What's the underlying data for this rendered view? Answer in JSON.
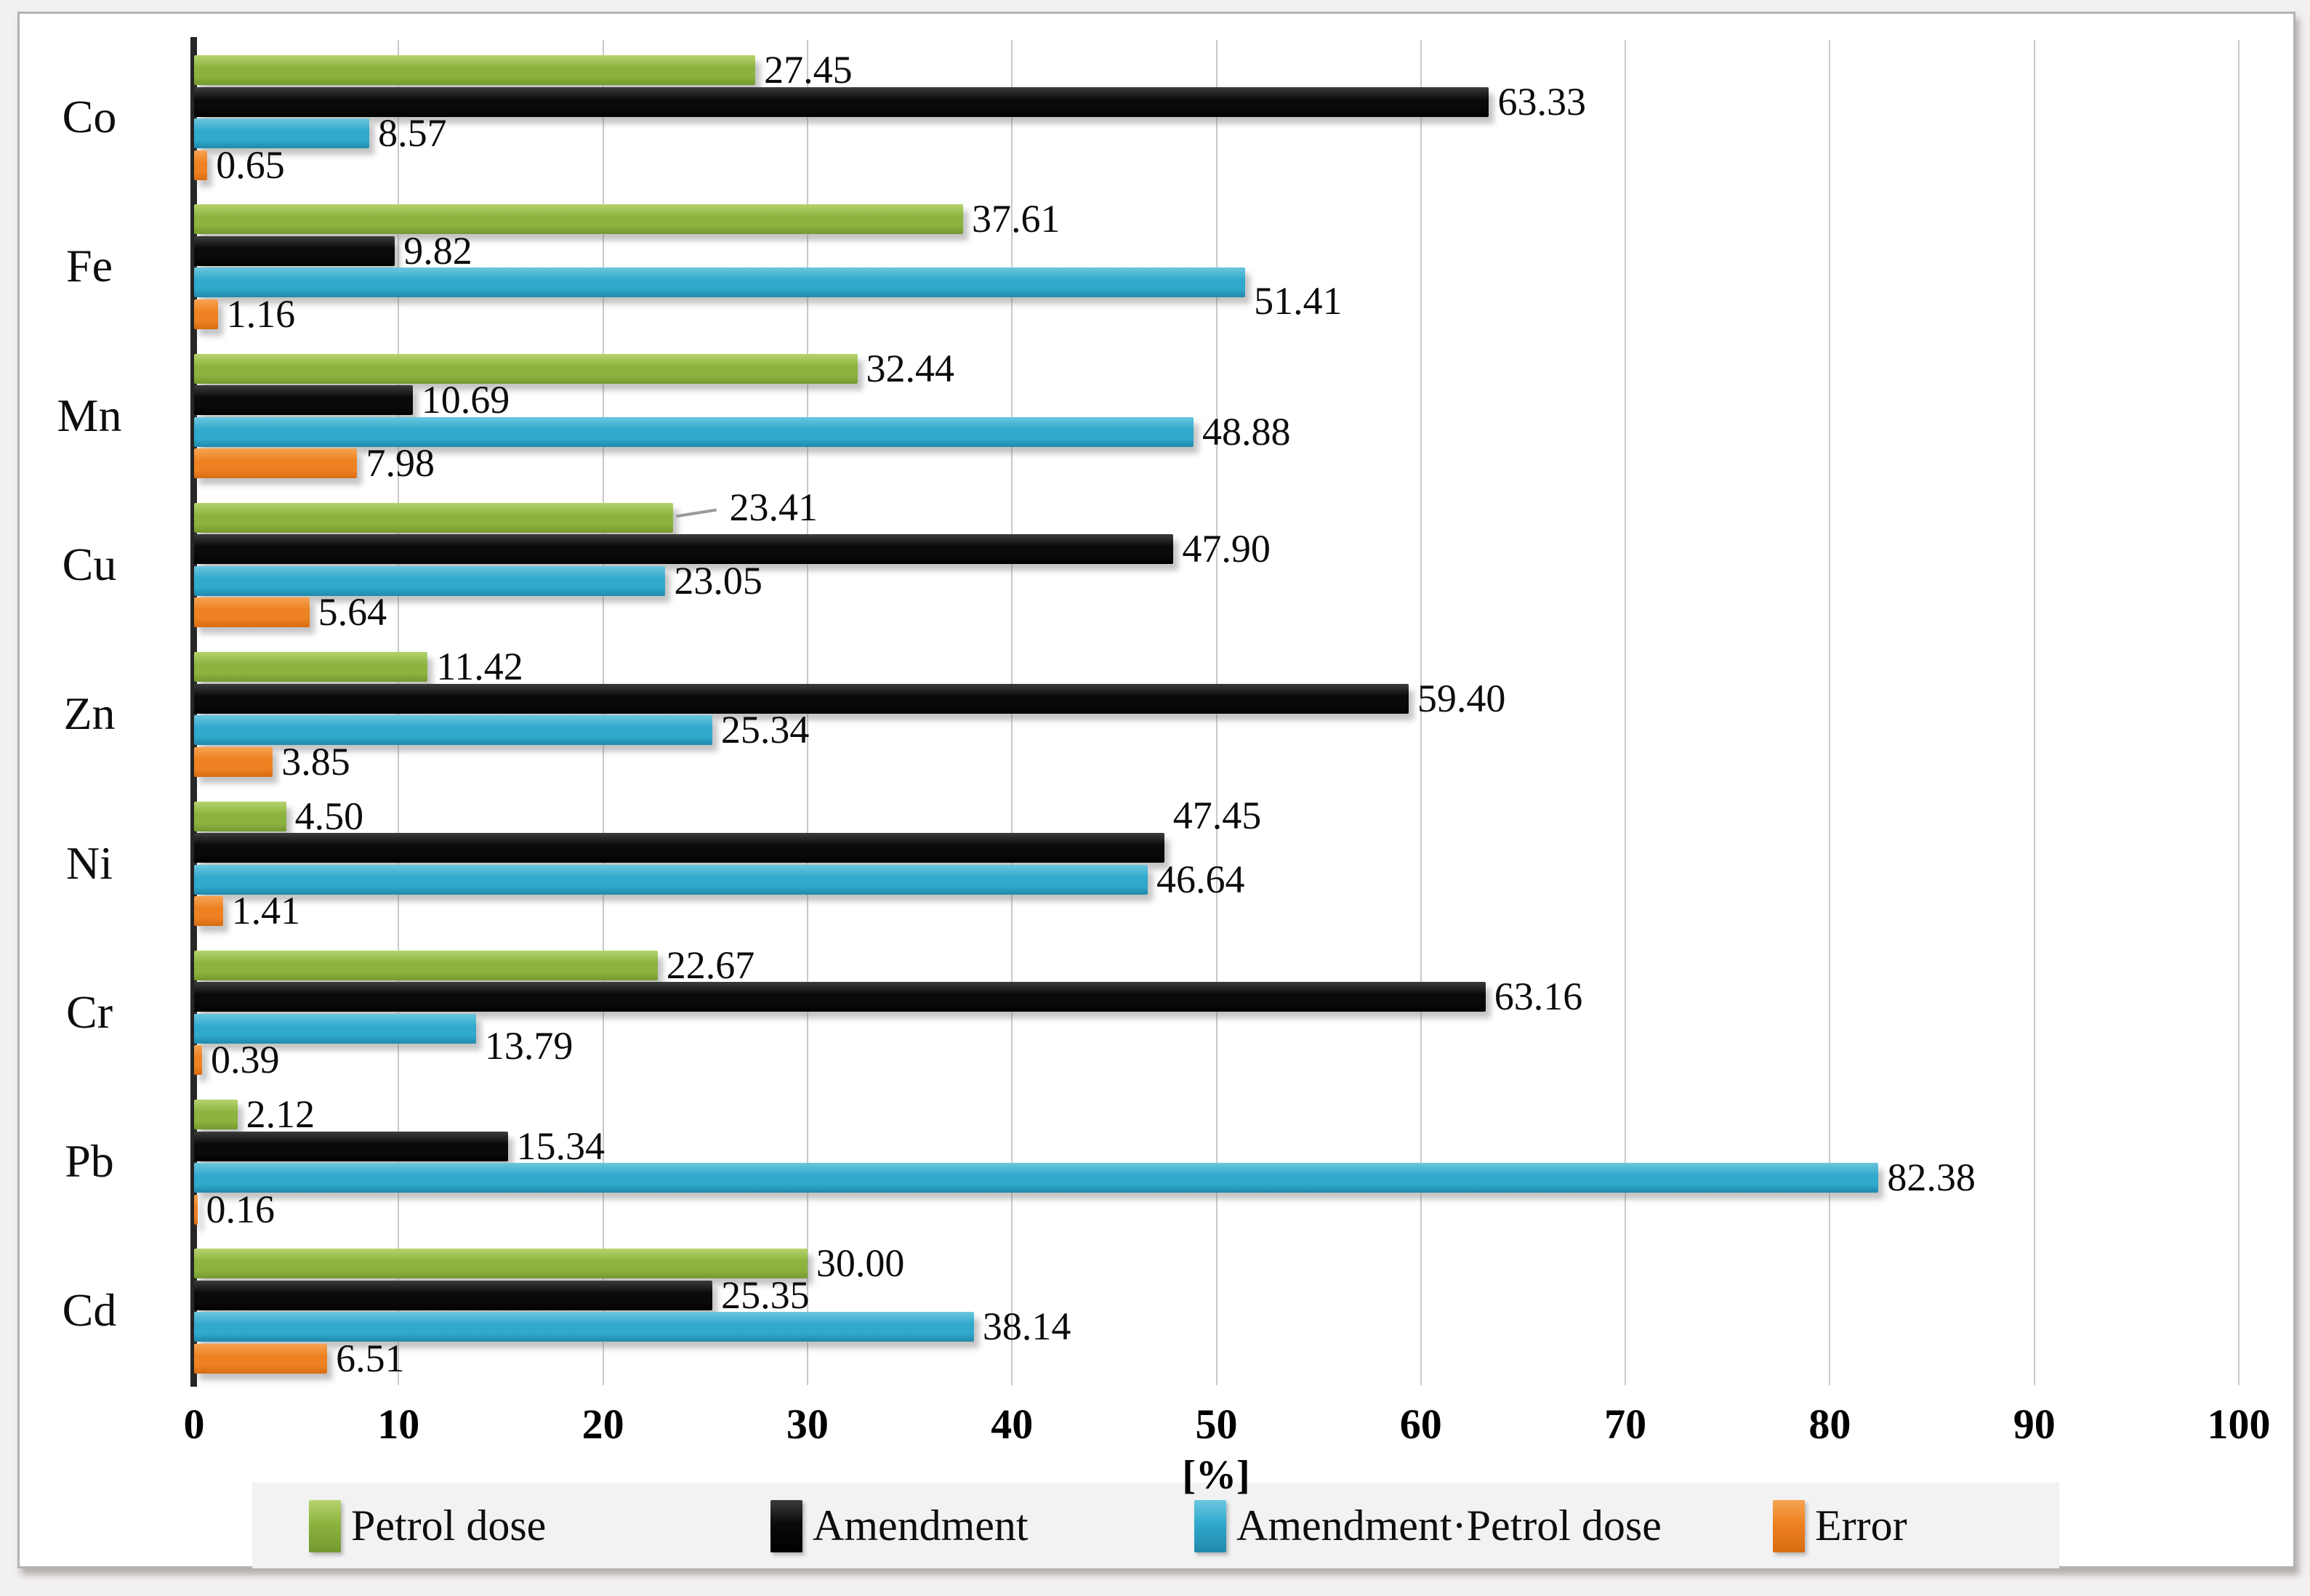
{
  "chart_data": {
    "type": "bar",
    "orientation": "horizontal",
    "title": "",
    "xlabel": "[%]",
    "ylabel": "",
    "xlim": [
      0,
      100
    ],
    "xticks": [
      0,
      10,
      20,
      30,
      40,
      50,
      60,
      70,
      80,
      90,
      100
    ],
    "grid": "vertical",
    "legend_position": "bottom",
    "categories": [
      "Co",
      "Fe",
      "Mn",
      "Cu",
      "Zn",
      "Ni",
      "Cr",
      "Pb",
      "Cd"
    ],
    "series": [
      {
        "name": "Petrol dose",
        "color": "#8cb33e",
        "color_light": "#b6d36e",
        "color_dark": "#74982f",
        "values": [
          27.45,
          37.61,
          32.44,
          23.41,
          11.42,
          4.5,
          22.67,
          2.12,
          30.0
        ]
      },
      {
        "name": "Amendment",
        "color": "#0a0a0a",
        "color_light": "#3c3c3c",
        "color_dark": "#000000",
        "values": [
          63.33,
          9.82,
          10.69,
          47.9,
          59.4,
          47.45,
          63.16,
          15.34,
          25.35
        ]
      },
      {
        "name": "Amendment·Petrol dose",
        "color": "#30a9cd",
        "color_light": "#6cc6de",
        "color_dark": "#2089ab",
        "values": [
          8.57,
          51.41,
          48.88,
          23.05,
          25.34,
          46.64,
          13.79,
          82.38,
          38.14
        ]
      },
      {
        "name": "Error",
        "color": "#ee8122",
        "color_light": "#f6a352",
        "color_dark": "#d76c12",
        "values": [
          0.65,
          1.16,
          7.98,
          5.64,
          3.85,
          1.41,
          0.39,
          0.16,
          6.51
        ]
      }
    ],
    "colors": {
      "gridline": "#c9c9c9",
      "axis_line": "#262626",
      "legend_background": "#f2f2f2",
      "frame_border": "#b5b2b2",
      "plot_background": "#ffffff",
      "page_background": "#f3f1f0"
    }
  }
}
